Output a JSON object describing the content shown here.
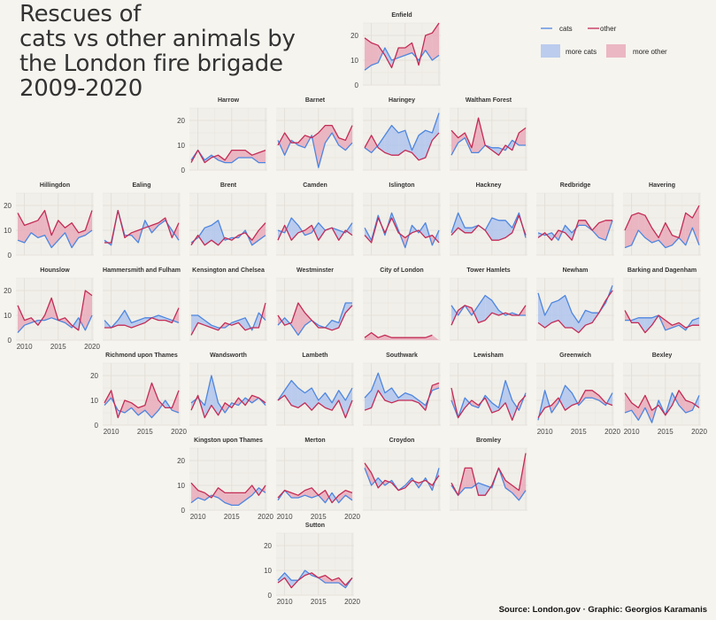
{
  "chart_data": {
    "type": "line",
    "title_lines": [
      "Rescues of",
      "cats vs other animals by",
      "the London fire brigade",
      "2009-2020"
    ],
    "source": "Source: London.gov · Graphic: Georgios Karamanis",
    "years": [
      2009,
      2010,
      2011,
      2012,
      2013,
      2014,
      2015,
      2016,
      2017,
      2018,
      2019,
      2020
    ],
    "ylim": [
      0,
      25
    ],
    "yticks": [
      0,
      10,
      20
    ],
    "xticks": [
      2010,
      2015,
      2020
    ],
    "colors": {
      "cats": "#4d86e0",
      "other": "#c42b55",
      "more_cats_fill": "#a7bfee",
      "more_other_fill": "#e7a3b4",
      "grid": "#e0ddd6"
    },
    "legend": {
      "cats": "cats",
      "other": "other",
      "more_cats": "more cats",
      "more_other": "more other"
    },
    "boroughs": [
      {
        "name": "Enfield",
        "cats": [
          6,
          8,
          9,
          15,
          10,
          11,
          12,
          13,
          10,
          14,
          10,
          12
        ],
        "other": [
          19,
          17,
          16,
          12,
          7,
          15,
          15,
          17,
          8,
          20,
          21,
          25
        ]
      },
      {
        "name": "Harrow",
        "cats": [
          4,
          8,
          4,
          6,
          4,
          3,
          3,
          5,
          5,
          5,
          3,
          3
        ],
        "other": [
          3,
          8,
          3,
          5,
          6,
          4,
          8,
          8,
          8,
          6,
          7,
          8
        ]
      },
      {
        "name": "Barnet",
        "cats": [
          12,
          6,
          12,
          10,
          9,
          14,
          1,
          11,
          15,
          10,
          8,
          11
        ],
        "other": [
          10,
          15,
          11,
          11,
          14,
          13,
          15,
          18,
          18,
          13,
          12,
          18
        ]
      },
      {
        "name": "Haringey",
        "cats": [
          9,
          7,
          10,
          14,
          18,
          15,
          16,
          8,
          14,
          16,
          15,
          23
        ],
        "other": [
          9,
          14,
          9,
          7,
          6,
          6,
          8,
          7,
          4,
          5,
          12,
          15
        ]
      },
      {
        "name": "Waltham Forest",
        "cats": [
          6,
          11,
          13,
          7,
          7,
          10,
          9,
          9,
          8,
          12,
          10,
          10
        ],
        "other": [
          16,
          13,
          15,
          9,
          21,
          10,
          8,
          6,
          10,
          8,
          15,
          17
        ]
      },
      {
        "name": "Hillingdon",
        "cats": [
          6,
          5,
          9,
          7,
          8,
          3,
          6,
          9,
          3,
          7,
          8,
          10
        ],
        "other": [
          17,
          12,
          13,
          14,
          18,
          8,
          14,
          11,
          13,
          9,
          10,
          18
        ]
      },
      {
        "name": "Ealing",
        "cats": [
          6,
          4,
          18,
          8,
          8,
          5,
          14,
          9,
          12,
          14,
          10,
          6
        ],
        "other": [
          5,
          5,
          18,
          7,
          9,
          10,
          11,
          12,
          13,
          15,
          7,
          13
        ]
      },
      {
        "name": "Brent",
        "cats": [
          5,
          7,
          11,
          12,
          14,
          6,
          7,
          7,
          10,
          4,
          6,
          8
        ],
        "other": [
          4,
          8,
          4,
          6,
          4,
          7,
          6,
          8,
          9,
          6,
          10,
          13
        ]
      },
      {
        "name": "Camden",
        "cats": [
          10,
          9,
          15,
          12,
          8,
          9,
          13,
          10,
          11,
          10,
          9,
          13
        ],
        "other": [
          6,
          12,
          6,
          9,
          10,
          12,
          6,
          10,
          11,
          6,
          10,
          8
        ]
      },
      {
        "name": "Islington",
        "cats": [
          11,
          6,
          16,
          8,
          17,
          10,
          3,
          12,
          9,
          13,
          4,
          10
        ],
        "other": [
          8,
          5,
          15,
          9,
          15,
          9,
          7,
          9,
          10,
          7,
          8,
          5
        ]
      },
      {
        "name": "Hackney",
        "cats": [
          9,
          17,
          11,
          11,
          12,
          10,
          15,
          14,
          14,
          11,
          17,
          7
        ],
        "other": [
          8,
          11,
          9,
          9,
          12,
          10,
          6,
          6,
          7,
          9,
          16,
          8
        ]
      },
      {
        "name": "Redbridge",
        "cats": [
          9,
          8,
          9,
          6,
          12,
          9,
          12,
          12,
          10,
          7,
          6,
          14
        ],
        "other": [
          7,
          9,
          6,
          10,
          9,
          6,
          14,
          14,
          10,
          13,
          14,
          14
        ]
      },
      {
        "name": "Havering",
        "cats": [
          3,
          4,
          10,
          7,
          5,
          6,
          3,
          4,
          7,
          4,
          11,
          4
        ],
        "other": [
          10,
          16,
          17,
          16,
          11,
          7,
          13,
          8,
          7,
          17,
          15,
          20
        ]
      },
      {
        "name": "Hounslow",
        "cats": [
          3,
          6,
          7,
          8,
          8,
          9,
          8,
          7,
          5,
          9,
          4,
          10
        ],
        "other": [
          14,
          8,
          9,
          6,
          10,
          17,
          8,
          9,
          6,
          4,
          20,
          18
        ]
      },
      {
        "name": "Hammersmith and Fulham",
        "cats": [
          8,
          5,
          8,
          12,
          7,
          8,
          9,
          9,
          10,
          9,
          8,
          7
        ],
        "other": [
          5,
          5,
          6,
          6,
          5,
          6,
          7,
          9,
          8,
          8,
          7,
          13
        ]
      },
      {
        "name": "Kensington and Chelsea",
        "cats": [
          10,
          10,
          8,
          6,
          5,
          5,
          7,
          8,
          9,
          4,
          11,
          8
        ],
        "other": [
          2,
          7,
          6,
          5,
          4,
          7,
          6,
          7,
          4,
          5,
          5,
          15
        ]
      },
      {
        "name": "Westminster",
        "cats": [
          6,
          9,
          6,
          2,
          6,
          8,
          6,
          5,
          8,
          7,
          15,
          15
        ],
        "other": [
          10,
          6,
          7,
          15,
          11,
          8,
          5,
          5,
          4,
          5,
          11,
          14
        ]
      },
      {
        "name": "City of London",
        "cats": [
          0,
          0,
          0,
          0,
          0,
          0,
          0,
          0,
          0,
          0,
          0,
          0
        ],
        "other": [
          1,
          3,
          1,
          2,
          1,
          1,
          1,
          1,
          1,
          1,
          2,
          0
        ]
      },
      {
        "name": "Tower Hamlets",
        "cats": [
          14,
          10,
          14,
          10,
          14,
          18,
          16,
          12,
          10,
          11,
          10,
          10
        ],
        "other": [
          6,
          12,
          14,
          13,
          7,
          8,
          11,
          10,
          11,
          10,
          10,
          14
        ]
      },
      {
        "name": "Newham",
        "cats": [
          19,
          10,
          15,
          16,
          18,
          11,
          7,
          12,
          11,
          11,
          15,
          22
        ],
        "other": [
          7,
          5,
          7,
          8,
          5,
          5,
          3,
          6,
          7,
          11,
          16,
          20
        ]
      },
      {
        "name": "Barking and Dagenham",
        "cats": [
          8,
          8,
          9,
          9,
          9,
          10,
          4,
          5,
          6,
          4,
          8,
          9
        ],
        "other": [
          12,
          7,
          7,
          3,
          6,
          10,
          8,
          6,
          7,
          5,
          6,
          6
        ]
      },
      {
        "name": "Richmond upon Thames",
        "cats": [
          8,
          11,
          6,
          5,
          7,
          4,
          6,
          3,
          6,
          10,
          6,
          5
        ],
        "other": [
          9,
          14,
          3,
          10,
          9,
          7,
          8,
          17,
          10,
          7,
          7,
          14
        ]
      },
      {
        "name": "Wandsworth",
        "cats": [
          9,
          11,
          8,
          20,
          9,
          5,
          9,
          8,
          11,
          9,
          11,
          8
        ],
        "other": [
          6,
          12,
          3,
          8,
          4,
          9,
          7,
          11,
          8,
          12,
          11,
          9
        ]
      },
      {
        "name": "Lambeth",
        "cats": [
          10,
          14,
          18,
          15,
          13,
          15,
          10,
          13,
          9,
          14,
          10,
          15
        ],
        "other": [
          10,
          12,
          8,
          7,
          9,
          6,
          9,
          7,
          6,
          10,
          3,
          10
        ]
      },
      {
        "name": "Southwark",
        "cats": [
          11,
          14,
          21,
          13,
          15,
          11,
          13,
          12,
          10,
          8,
          14,
          15
        ],
        "other": [
          6,
          7,
          14,
          10,
          9,
          10,
          10,
          10,
          9,
          6,
          16,
          17
        ]
      },
      {
        "name": "Lewisham",
        "cats": [
          10,
          3,
          11,
          8,
          7,
          12,
          9,
          7,
          18,
          10,
          6,
          13
        ],
        "other": [
          15,
          3,
          7,
          10,
          8,
          11,
          5,
          6,
          9,
          2,
          9,
          12
        ]
      },
      {
        "name": "Greenwich",
        "cats": [
          2,
          14,
          5,
          9,
          16,
          13,
          8,
          11,
          11,
          10,
          8,
          13
        ],
        "other": [
          3,
          7,
          8,
          11,
          6,
          8,
          9,
          14,
          14,
          12,
          9,
          8
        ]
      },
      {
        "name": "Bexley",
        "cats": [
          5,
          6,
          2,
          7,
          1,
          10,
          4,
          13,
          8,
          5,
          6,
          12
        ],
        "other": [
          13,
          9,
          7,
          12,
          6,
          8,
          4,
          8,
          14,
          10,
          9,
          7
        ]
      },
      {
        "name": "Kingston upon Thames",
        "cats": [
          3,
          5,
          4,
          6,
          5,
          3,
          2,
          2,
          4,
          6,
          9,
          7
        ],
        "other": [
          11,
          8,
          7,
          5,
          9,
          7,
          7,
          7,
          7,
          10,
          6,
          10
        ]
      },
      {
        "name": "Merton",
        "cats": [
          4,
          8,
          5,
          5,
          6,
          5,
          6,
          3,
          7,
          3,
          6,
          4
        ],
        "other": [
          5,
          8,
          7,
          6,
          8,
          9,
          6,
          8,
          3,
          6,
          8,
          7
        ]
      },
      {
        "name": "Croydon",
        "cats": [
          17,
          10,
          13,
          10,
          12,
          8,
          10,
          13,
          9,
          13,
          8,
          17
        ],
        "other": [
          19,
          15,
          9,
          12,
          11,
          8,
          9,
          12,
          11,
          12,
          10,
          14
        ]
      },
      {
        "name": "Bromley",
        "cats": [
          10,
          6,
          9,
          9,
          11,
          10,
          9,
          17,
          9,
          7,
          4,
          8
        ],
        "other": [
          11,
          6,
          17,
          17,
          6,
          6,
          10,
          17,
          12,
          10,
          8,
          23
        ]
      },
      {
        "name": "Sutton",
        "cats": [
          6,
          9,
          6,
          6,
          10,
          8,
          7,
          5,
          5,
          5,
          3,
          7
        ],
        "other": [
          5,
          7,
          3,
          6,
          8,
          9,
          7,
          8,
          6,
          7,
          4,
          7
        ]
      }
    ]
  }
}
